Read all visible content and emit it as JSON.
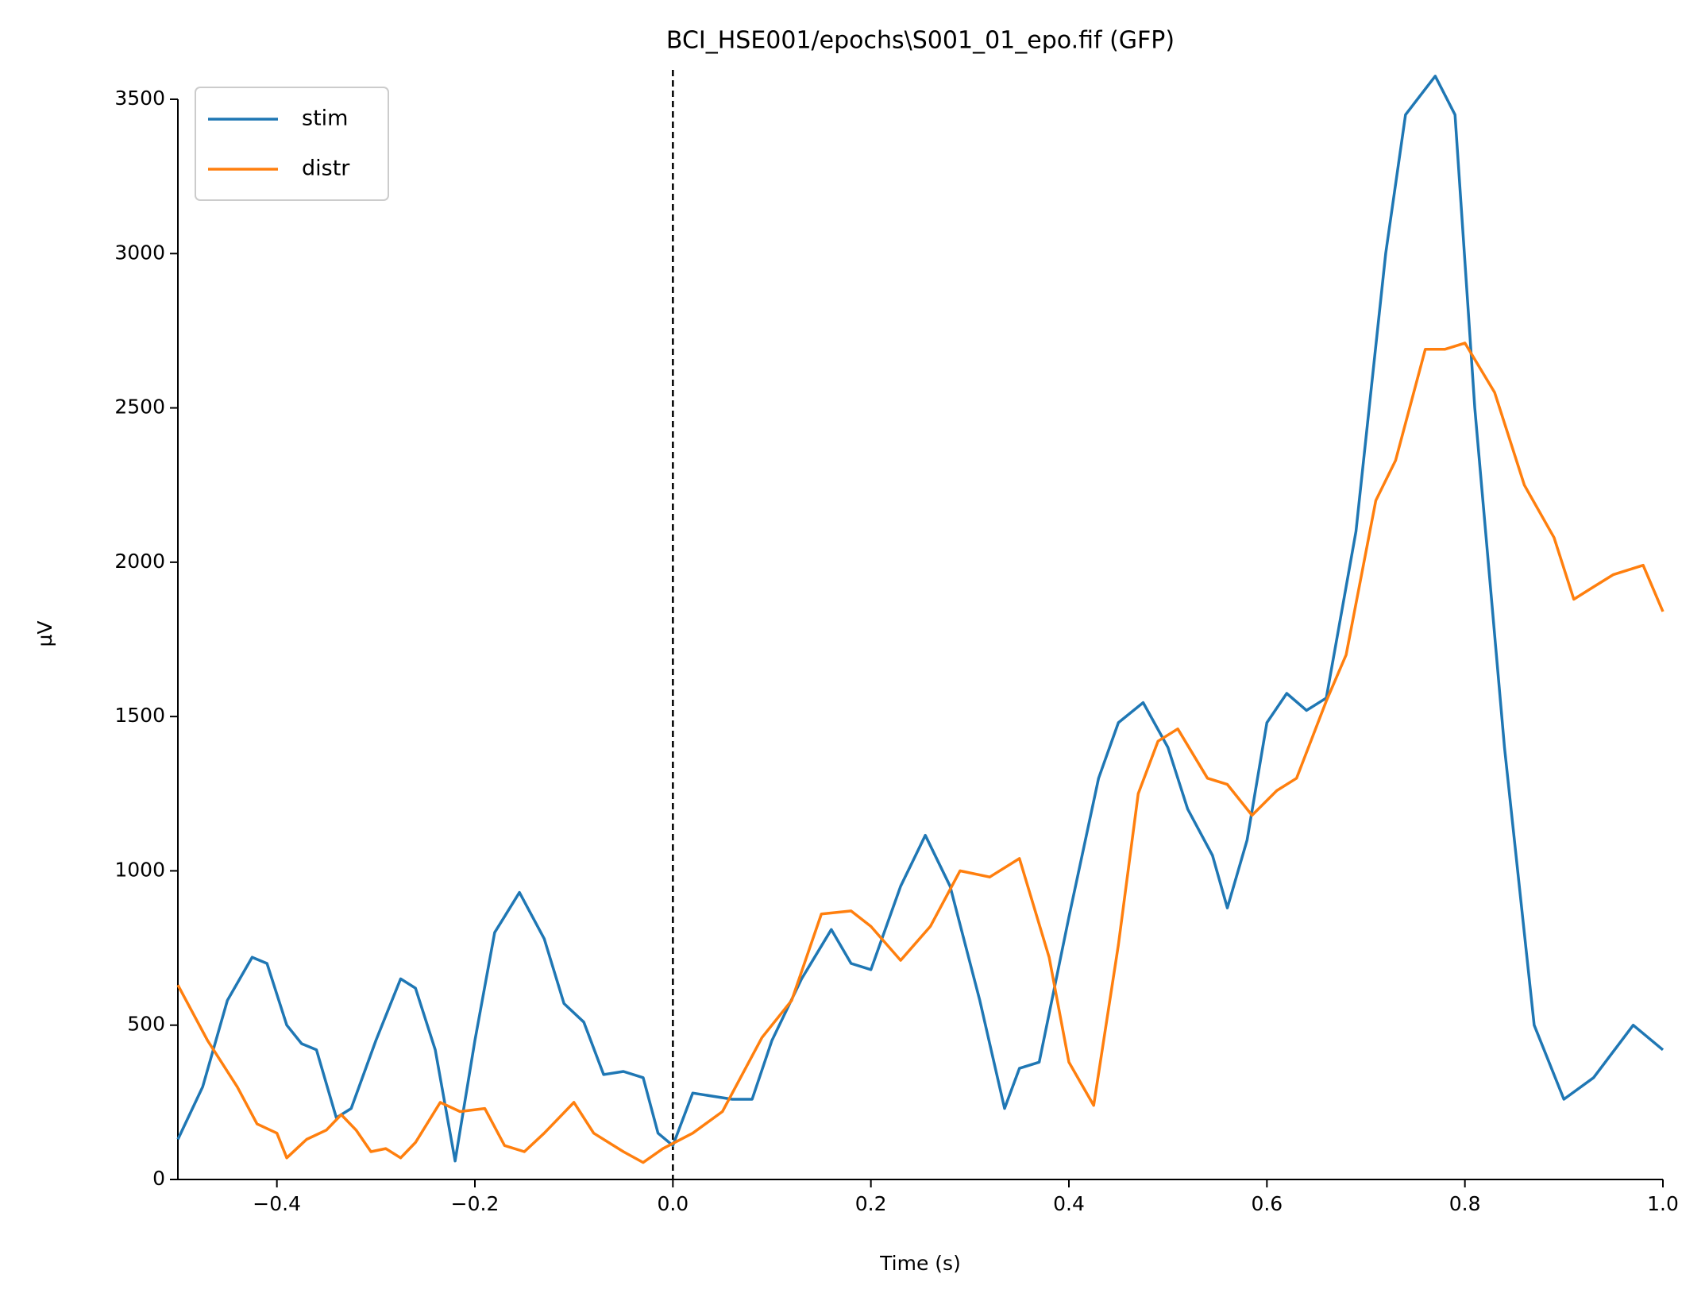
{
  "chart_data": {
    "type": "line",
    "title": "BCI_HSE001/epochs\\S001_01_epo.fif (GFP)",
    "x_label": "Time (s)",
    "y_label": "µV",
    "xlim": [
      -0.5,
      1.0
    ],
    "ylim": [
      0,
      3590
    ],
    "xticks": [
      {
        "value": -0.4,
        "label": "−0.4"
      },
      {
        "value": -0.2,
        "label": "−0.2"
      },
      {
        "value": 0.0,
        "label": "0.0"
      },
      {
        "value": 0.2,
        "label": "0.2"
      },
      {
        "value": 0.4,
        "label": "0.4"
      },
      {
        "value": 0.6,
        "label": "0.6"
      },
      {
        "value": 0.8,
        "label": "0.8"
      },
      {
        "value": 1.0,
        "label": "1.0"
      }
    ],
    "yticks": [
      0,
      500,
      1000,
      1500,
      2000,
      2500,
      3000,
      3500
    ],
    "vline_x": 0,
    "legend": "upper left",
    "series": [
      {
        "name": "stim",
        "color": "#1f77b4",
        "x": [
          -0.5,
          -0.475,
          -0.45,
          -0.425,
          -0.41,
          -0.39,
          -0.375,
          -0.36,
          -0.34,
          -0.325,
          -0.3,
          -0.275,
          -0.26,
          -0.24,
          -0.22,
          -0.2,
          -0.18,
          -0.155,
          -0.13,
          -0.11,
          -0.09,
          -0.07,
          -0.05,
          -0.03,
          -0.015,
          0.0,
          0.02,
          0.04,
          0.06,
          0.08,
          0.1,
          0.13,
          0.16,
          0.18,
          0.2,
          0.23,
          0.255,
          0.28,
          0.31,
          0.335,
          0.35,
          0.37,
          0.4,
          0.43,
          0.45,
          0.475,
          0.5,
          0.52,
          0.545,
          0.56,
          0.58,
          0.6,
          0.62,
          0.64,
          0.66,
          0.69,
          0.72,
          0.74,
          0.77,
          0.79,
          0.81,
          0.84,
          0.87,
          0.9,
          0.93,
          0.97,
          1.0
        ],
        "values": [
          130,
          300,
          580,
          720,
          700,
          500,
          440,
          420,
          200,
          230,
          450,
          650,
          620,
          420,
          60,
          450,
          800,
          930,
          780,
          570,
          510,
          340,
          350,
          330,
          150,
          110,
          280,
          270,
          260,
          260,
          450,
          650,
          810,
          700,
          680,
          950,
          1115,
          950,
          580,
          230,
          360,
          380,
          850,
          1300,
          1480,
          1545,
          1400,
          1200,
          1050,
          880,
          1100,
          1480,
          1575,
          1520,
          1560,
          2100,
          3000,
          3450,
          3575,
          3450,
          2500,
          1400,
          500,
          260,
          330,
          500,
          420
        ]
      },
      {
        "name": "distr",
        "color": "#ff7f0e",
        "x": [
          -0.5,
          -0.47,
          -0.44,
          -0.42,
          -0.4,
          -0.39,
          -0.37,
          -0.35,
          -0.335,
          -0.32,
          -0.305,
          -0.29,
          -0.275,
          -0.26,
          -0.235,
          -0.215,
          -0.19,
          -0.17,
          -0.15,
          -0.13,
          -0.1,
          -0.08,
          -0.05,
          -0.03,
          -0.01,
          0.02,
          0.05,
          0.09,
          0.12,
          0.15,
          0.18,
          0.2,
          0.23,
          0.26,
          0.29,
          0.32,
          0.35,
          0.38,
          0.4,
          0.425,
          0.45,
          0.47,
          0.49,
          0.51,
          0.54,
          0.56,
          0.585,
          0.61,
          0.63,
          0.66,
          0.68,
          0.71,
          0.73,
          0.76,
          0.78,
          0.8,
          0.83,
          0.86,
          0.89,
          0.91,
          0.93,
          0.95,
          0.98,
          1.0
        ],
        "values": [
          630,
          450,
          300,
          180,
          150,
          70,
          130,
          160,
          210,
          160,
          90,
          100,
          70,
          120,
          250,
          220,
          230,
          110,
          90,
          150,
          250,
          150,
          90,
          55,
          100,
          150,
          220,
          460,
          580,
          860,
          870,
          820,
          710,
          820,
          1000,
          980,
          1040,
          720,
          380,
          240,
          760,
          1250,
          1420,
          1460,
          1300,
          1280,
          1180,
          1260,
          1300,
          1550,
          1700,
          2200,
          2330,
          2690,
          2690,
          2710,
          2550,
          2250,
          2080,
          1880,
          1920,
          1960,
          1990,
          1840
        ]
      }
    ]
  }
}
